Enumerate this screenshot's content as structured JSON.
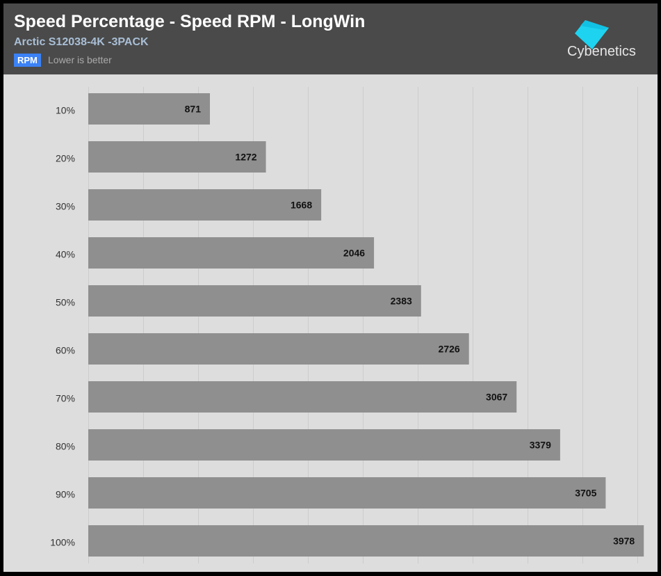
{
  "header": {
    "title": "Speed Percentage - Speed RPM - LongWin",
    "subtitle": "Arctic S12038-4K -3PACK",
    "badge": "RPM",
    "hint": "Lower is better",
    "logo_text": "Cybenetics"
  },
  "colors": {
    "header_bg": "#4a4a4a",
    "chart_bg": "#dddddd",
    "bar": "#8f8f8f",
    "badge": "#3b82f6",
    "logo": "#1ed3f0"
  },
  "chart_data": {
    "type": "bar",
    "orientation": "horizontal",
    "title": "Speed Percentage - Speed RPM - LongWin",
    "subtitle": "Arctic S12038-4K -3PACK",
    "unit": "RPM",
    "note": "Lower is better",
    "categories": [
      "10%",
      "20%",
      "30%",
      "40%",
      "50%",
      "60%",
      "70%",
      "80%",
      "90%",
      "100%"
    ],
    "values": [
      871,
      1272,
      1668,
      2046,
      2383,
      2726,
      3067,
      3379,
      3705,
      3978
    ],
    "xlim": [
      0,
      3932
    ],
    "grid": true,
    "grid_step": 393.2
  }
}
